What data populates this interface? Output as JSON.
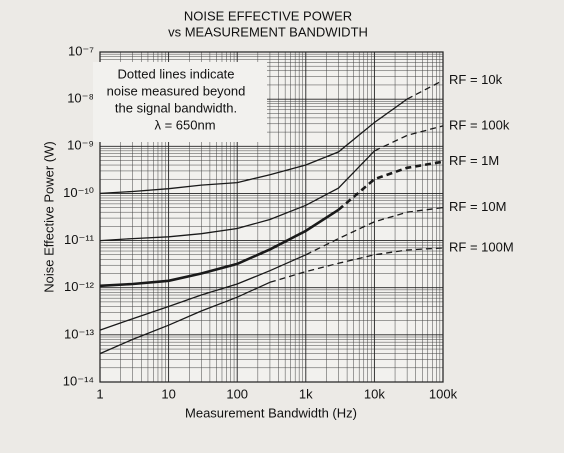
{
  "chart_data": {
    "type": "line",
    "title": "NOISE EFFECTIVE POWER",
    "subtitle": "vs MEASUREMENT BANDWIDTH",
    "x_label": "Measurement Bandwidth (Hz)",
    "y_label": "Noise Effective Power (W)",
    "annotation": [
      "Dotted lines indicate",
      "noise measured beyond",
      "the signal bandwidth.",
      "λ = 650nm"
    ],
    "x": [
      1,
      3,
      10,
      30,
      100,
      300,
      1000,
      3000,
      10000,
      30000,
      100000
    ],
    "xscale": "log",
    "yscale": "log",
    "grid": true,
    "minor_grid": true,
    "xlim": [
      1,
      100000
    ],
    "ylim": [
      1e-14,
      1e-07
    ],
    "xticks": [
      1,
      10,
      100,
      {
        "value": 1000,
        "label": "1k"
      },
      {
        "value": 10000,
        "label": "10k"
      },
      {
        "value": 100000,
        "label": "100k"
      }
    ],
    "yticks": [
      {
        "value": 1e-14,
        "label": "10⁻¹⁴"
      },
      {
        "value": 1e-13,
        "label": "10⁻¹³"
      },
      {
        "value": 1e-12,
        "label": "10⁻¹²"
      },
      {
        "value": 1e-11,
        "label": "10⁻¹¹"
      },
      {
        "value": 1e-10,
        "label": "10⁻¹⁰"
      },
      {
        "value": 1e-09,
        "label": "10⁻⁹"
      },
      {
        "value": 1e-08,
        "label": "10⁻⁸"
      },
      {
        "value": 1e-07,
        "label": "10⁻⁷"
      }
    ],
    "series": [
      {
        "name": "RF = 10k",
        "color": "#1a1a1a",
        "width": 1.3,
        "values": [
          1e-10,
          1.1e-10,
          1.26e-10,
          1.5e-10,
          1.7e-10,
          2.5e-10,
          4e-10,
          7.6e-10,
          3.2e-09,
          1e-08,
          null
        ],
        "dotted_values": [
          null,
          null,
          null,
          null,
          null,
          null,
          null,
          null,
          null,
          1e-08,
          2.5e-08
        ]
      },
      {
        "name": "RF = 100k",
        "color": "#1a1a1a",
        "width": 1.3,
        "values": [
          1e-11,
          1.1e-11,
          1.2e-11,
          1.4e-11,
          1.8e-11,
          2.8e-11,
          5.6e-11,
          1.3e-10,
          8e-10,
          null,
          null
        ],
        "dotted_values": [
          null,
          null,
          null,
          null,
          null,
          null,
          null,
          null,
          8e-10,
          1.7e-09,
          2.7e-09
        ]
      },
      {
        "name": "RF = 1M",
        "color": "#1a1a1a",
        "width": 2.6,
        "values": [
          1.1e-12,
          1.2e-12,
          1.4e-12,
          2e-12,
          3.2e-12,
          6.5e-12,
          1.6e-11,
          4.5e-11,
          null,
          null,
          null
        ],
        "dotted_values": [
          null,
          null,
          null,
          null,
          null,
          null,
          null,
          4.5e-11,
          2e-10,
          3.5e-10,
          4.7e-10
        ]
      },
      {
        "name": "RF = 10M",
        "color": "#1a1a1a",
        "width": 1.3,
        "values": [
          1.26e-13,
          2.2e-13,
          4e-13,
          7e-13,
          1.2e-12,
          2.3e-12,
          5e-12,
          null,
          null,
          null,
          null
        ],
        "dotted_values": [
          null,
          null,
          null,
          null,
          null,
          null,
          5e-12,
          1.1e-11,
          2.5e-11,
          4e-11,
          5e-11
        ]
      },
      {
        "name": "RF = 100M",
        "color": "#1a1a1a",
        "width": 1.3,
        "values": [
          4e-14,
          8e-14,
          1.6e-13,
          3.2e-13,
          6.3e-13,
          1.3e-12,
          null,
          null,
          null,
          null,
          null
        ],
        "dotted_values": [
          null,
          null,
          null,
          null,
          null,
          1.3e-12,
          2.2e-12,
          3.3e-12,
          5e-12,
          6.3e-12,
          7e-12
        ]
      }
    ]
  }
}
